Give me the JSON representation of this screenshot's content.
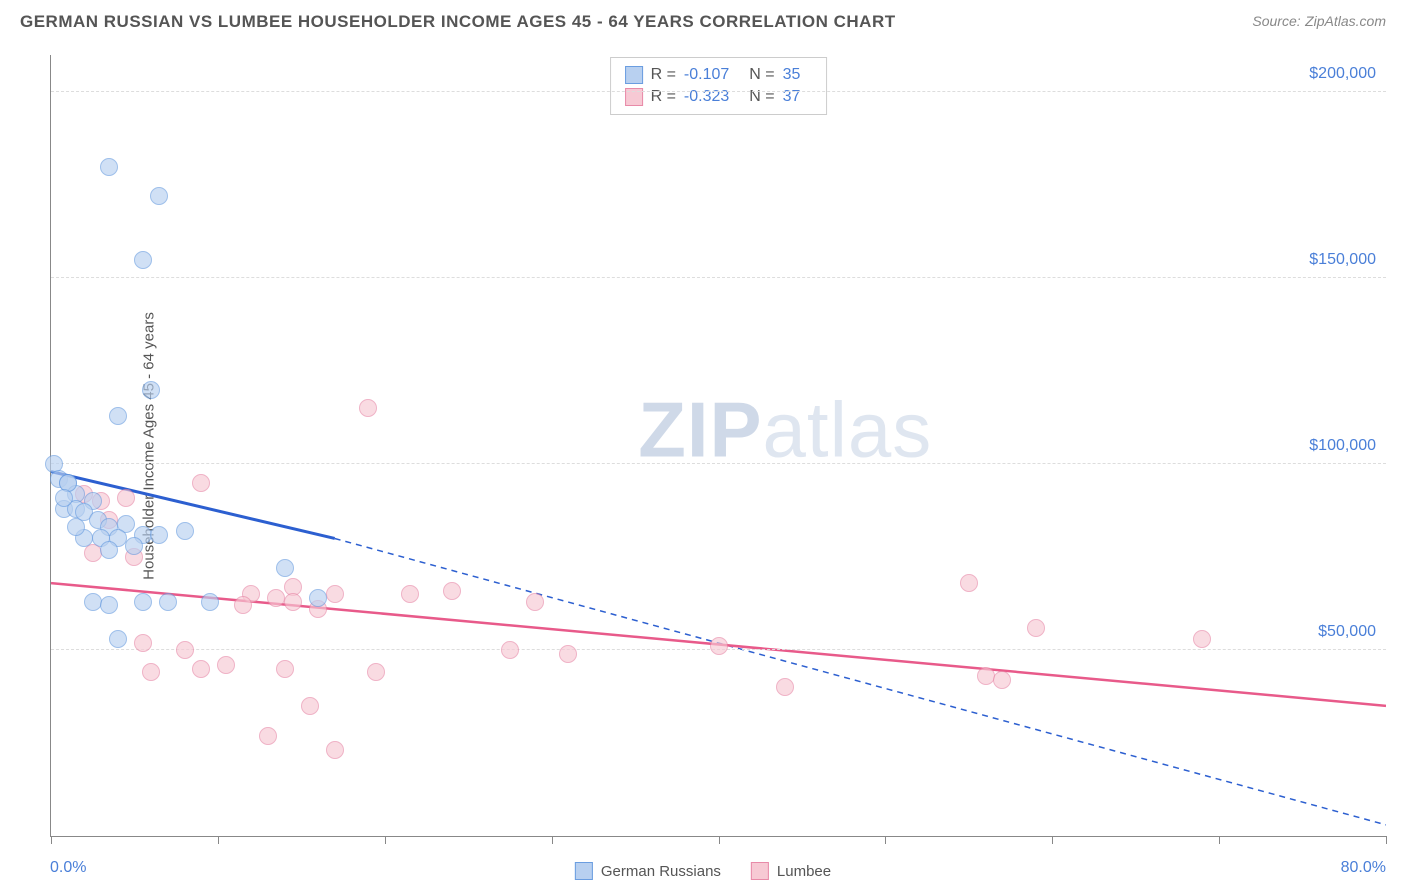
{
  "title": "GERMAN RUSSIAN VS LUMBEE HOUSEHOLDER INCOME AGES 45 - 64 YEARS CORRELATION CHART",
  "source_label": "Source:",
  "source_name": "ZipAtlas.com",
  "watermark_bold": "ZIP",
  "watermark_light": "atlas",
  "y_axis_title": "Householder Income Ages 45 - 64 years",
  "chart": {
    "type": "scatter",
    "background_color": "#ffffff",
    "grid_color": "#dddddd",
    "axis_color": "#888888",
    "tick_label_color": "#4a7fd8",
    "xlim": [
      0,
      80
    ],
    "ylim": [
      0,
      210000
    ],
    "x_start_label": "0.0%",
    "x_end_label": "80.0%",
    "x_ticks": [
      0,
      10,
      20,
      30,
      40,
      50,
      60,
      70,
      80
    ],
    "y_gridlines": [
      {
        "value": 50000,
        "label": "$50,000"
      },
      {
        "value": 100000,
        "label": "$100,000"
      },
      {
        "value": 150000,
        "label": "$150,000"
      },
      {
        "value": 200000,
        "label": "$200,000"
      }
    ],
    "marker_radius": 9,
    "marker_stroke_width": 1.5,
    "series": [
      {
        "name": "German Russians",
        "fill": "#b8d0f0",
        "stroke": "#6a9de0",
        "fill_opacity": 0.65,
        "stats": {
          "R_label": "R =",
          "R": "-0.107",
          "N_label": "N =",
          "N": "35"
        },
        "trend": {
          "color": "#2c5fd0",
          "solid_width": 3,
          "dash_width": 1.5,
          "dash_pattern": "6 5",
          "x1": 0,
          "y1": 98000,
          "x2_solid": 17,
          "y2_solid": 80000,
          "x2_dash": 80,
          "y2_dash": 3000
        },
        "points": [
          {
            "x": 3.5,
            "y": 180000
          },
          {
            "x": 6.5,
            "y": 172000
          },
          {
            "x": 5.5,
            "y": 155000
          },
          {
            "x": 6.0,
            "y": 120000
          },
          {
            "x": 4.0,
            "y": 113000
          },
          {
            "x": 0.2,
            "y": 100000
          },
          {
            "x": 0.5,
            "y": 96000
          },
          {
            "x": 1.0,
            "y": 95000
          },
          {
            "x": 1.5,
            "y": 92000
          },
          {
            "x": 0.8,
            "y": 88000
          },
          {
            "x": 2.5,
            "y": 90000
          },
          {
            "x": 1.5,
            "y": 88000
          },
          {
            "x": 1.0,
            "y": 95000
          },
          {
            "x": 2.0,
            "y": 87000
          },
          {
            "x": 2.8,
            "y": 85000
          },
          {
            "x": 3.5,
            "y": 83000
          },
          {
            "x": 4.5,
            "y": 84000
          },
          {
            "x": 2.0,
            "y": 80000
          },
          {
            "x": 3.0,
            "y": 80000
          },
          {
            "x": 4.0,
            "y": 80000
          },
          {
            "x": 5.5,
            "y": 81000
          },
          {
            "x": 6.5,
            "y": 81000
          },
          {
            "x": 8.0,
            "y": 82000
          },
          {
            "x": 3.5,
            "y": 77000
          },
          {
            "x": 5.0,
            "y": 78000
          },
          {
            "x": 14.0,
            "y": 72000
          },
          {
            "x": 16.0,
            "y": 64000
          },
          {
            "x": 2.5,
            "y": 63000
          },
          {
            "x": 3.5,
            "y": 62000
          },
          {
            "x": 5.5,
            "y": 63000
          },
          {
            "x": 7.0,
            "y": 63000
          },
          {
            "x": 9.5,
            "y": 63000
          },
          {
            "x": 4.0,
            "y": 53000
          },
          {
            "x": 1.5,
            "y": 83000
          },
          {
            "x": 0.8,
            "y": 91000
          }
        ]
      },
      {
        "name": "Lumbee",
        "fill": "#f7c9d4",
        "stroke": "#e88aa8",
        "fill_opacity": 0.65,
        "stats": {
          "R_label": "R =",
          "R": "-0.323",
          "N_label": "N =",
          "N": "37"
        },
        "trend": {
          "color": "#e85a8a",
          "solid_width": 2.5,
          "dash_width": 0,
          "dash_pattern": "",
          "x1": 0,
          "y1": 68000,
          "x2_solid": 80,
          "y2_solid": 35000,
          "x2_dash": 80,
          "y2_dash": 35000
        },
        "points": [
          {
            "x": 19.0,
            "y": 115000
          },
          {
            "x": 9.0,
            "y": 95000
          },
          {
            "x": 2.0,
            "y": 92000
          },
          {
            "x": 3.0,
            "y": 90000
          },
          {
            "x": 4.5,
            "y": 91000
          },
          {
            "x": 3.5,
            "y": 85000
          },
          {
            "x": 2.5,
            "y": 76000
          },
          {
            "x": 5.0,
            "y": 75000
          },
          {
            "x": 55.0,
            "y": 68000
          },
          {
            "x": 12.0,
            "y": 65000
          },
          {
            "x": 13.5,
            "y": 64000
          },
          {
            "x": 14.5,
            "y": 67000
          },
          {
            "x": 17.0,
            "y": 65000
          },
          {
            "x": 21.5,
            "y": 65000
          },
          {
            "x": 24.0,
            "y": 66000
          },
          {
            "x": 29.0,
            "y": 63000
          },
          {
            "x": 11.5,
            "y": 62000
          },
          {
            "x": 14.5,
            "y": 63000
          },
          {
            "x": 16.0,
            "y": 61000
          },
          {
            "x": 59.0,
            "y": 56000
          },
          {
            "x": 69.0,
            "y": 53000
          },
          {
            "x": 5.5,
            "y": 52000
          },
          {
            "x": 8.0,
            "y": 50000
          },
          {
            "x": 27.5,
            "y": 50000
          },
          {
            "x": 31.0,
            "y": 49000
          },
          {
            "x": 40.0,
            "y": 51000
          },
          {
            "x": 6.0,
            "y": 44000
          },
          {
            "x": 9.0,
            "y": 45000
          },
          {
            "x": 10.5,
            "y": 46000
          },
          {
            "x": 14.0,
            "y": 45000
          },
          {
            "x": 19.5,
            "y": 44000
          },
          {
            "x": 44.0,
            "y": 40000
          },
          {
            "x": 56.0,
            "y": 43000
          },
          {
            "x": 57.0,
            "y": 42000
          },
          {
            "x": 15.5,
            "y": 35000
          },
          {
            "x": 13.0,
            "y": 27000
          },
          {
            "x": 17.0,
            "y": 23000
          }
        ]
      }
    ]
  }
}
